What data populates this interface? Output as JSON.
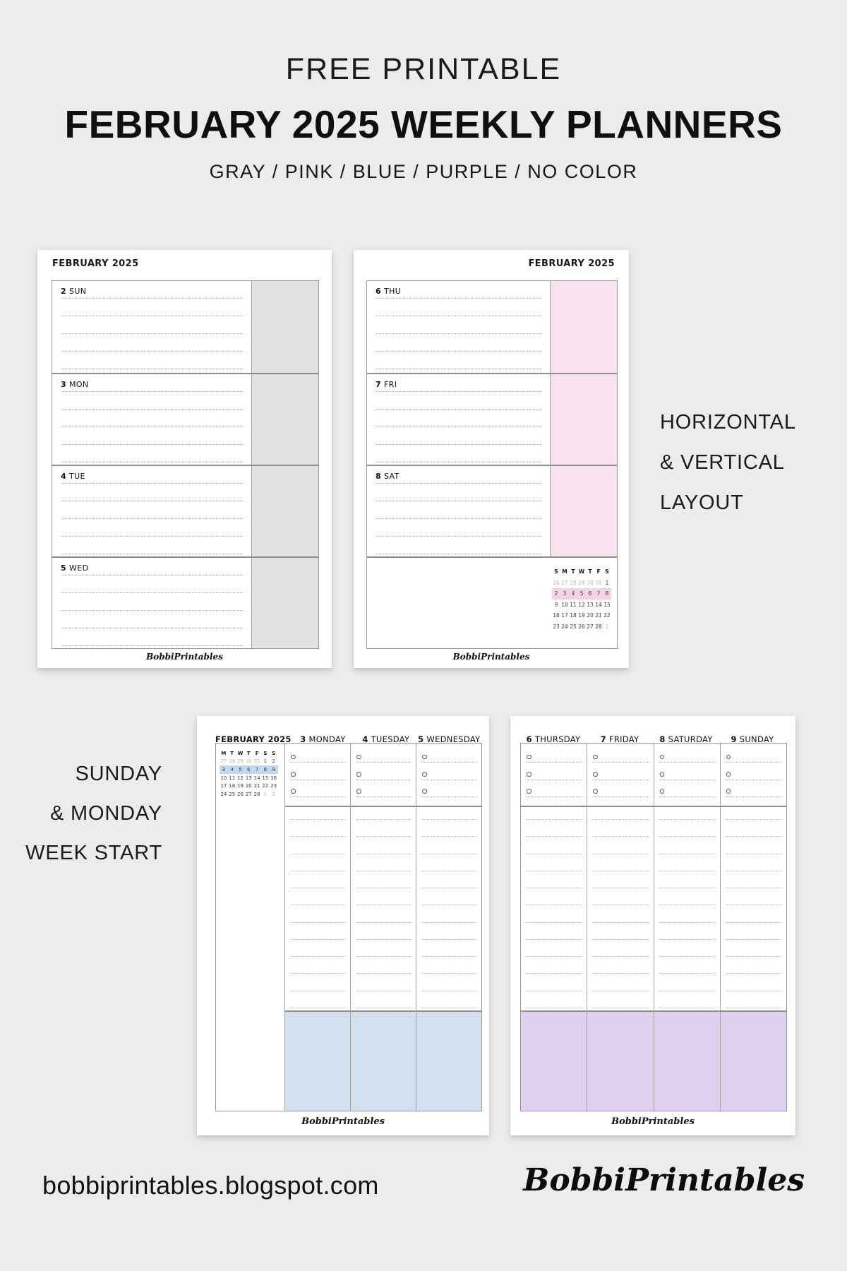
{
  "header": {
    "eyebrow": "FREE PRINTABLE",
    "title": "FEBRUARY 2025 WEEKLY PLANNERS",
    "subtitle": "GRAY / PINK / BLUE / PURPLE / NO COLOR"
  },
  "side_labels": {
    "right": [
      "HORIZONTAL",
      "& VERTICAL",
      "LAYOUT"
    ],
    "left": [
      "SUNDAY",
      "& MONDAY",
      "WEEK START"
    ]
  },
  "footer": {
    "site": "bobbiprintables.blogspot.com",
    "brand": "BobbiPrintables"
  },
  "colors": {
    "gray_box": "#E2E2E2",
    "pink_box": "#F9E2F0",
    "pink_highlight": "#F5D2E6",
    "blue_box": "#D2E0EF",
    "blue_highlight": "#C4D7ED",
    "purple_box": "#DED0EE"
  },
  "planners": {
    "horizontal_gray": {
      "layout": "horizontal",
      "month_label": "FEBRUARY 2025",
      "brand": "BobbiPrintables",
      "box_color": "gray_box",
      "ruled_lines": 5,
      "days": [
        {
          "num": "2",
          "name": "SUN"
        },
        {
          "num": "3",
          "name": "MON"
        },
        {
          "num": "4",
          "name": "TUE"
        },
        {
          "num": "5",
          "name": "WED"
        }
      ]
    },
    "horizontal_pink": {
      "layout": "horizontal",
      "month_label": "FEBRUARY 2025",
      "brand": "BobbiPrintables",
      "box_color": "pink_box",
      "ruled_lines": 5,
      "days": [
        {
          "num": "6",
          "name": "THU"
        },
        {
          "num": "7",
          "name": "FRI"
        },
        {
          "num": "8",
          "name": "SAT"
        }
      ],
      "mini_calendar": {
        "header": [
          "S",
          "M",
          "T",
          "W",
          "T",
          "F",
          "S"
        ],
        "highlight_row": 1,
        "highlight_color": "pink_highlight",
        "rows": [
          [
            {
              "d": "26",
              "muted": true
            },
            {
              "d": "27",
              "muted": true
            },
            {
              "d": "28",
              "muted": true
            },
            {
              "d": "29",
              "muted": true
            },
            {
              "d": "30",
              "muted": true
            },
            {
              "d": "31",
              "muted": true
            },
            {
              "d": "1"
            }
          ],
          [
            {
              "d": "2"
            },
            {
              "d": "3"
            },
            {
              "d": "4"
            },
            {
              "d": "5"
            },
            {
              "d": "6"
            },
            {
              "d": "7"
            },
            {
              "d": "8"
            }
          ],
          [
            {
              "d": "9"
            },
            {
              "d": "10"
            },
            {
              "d": "11"
            },
            {
              "d": "12"
            },
            {
              "d": "13"
            },
            {
              "d": "14"
            },
            {
              "d": "15"
            }
          ],
          [
            {
              "d": "16"
            },
            {
              "d": "17"
            },
            {
              "d": "18"
            },
            {
              "d": "19"
            },
            {
              "d": "20"
            },
            {
              "d": "21"
            },
            {
              "d": "22"
            }
          ],
          [
            {
              "d": "23"
            },
            {
              "d": "24"
            },
            {
              "d": "25"
            },
            {
              "d": "26"
            },
            {
              "d": "27"
            },
            {
              "d": "28"
            },
            {
              "d": "1",
              "muted": true
            }
          ]
        ]
      }
    },
    "vertical_blue": {
      "layout": "vertical",
      "month_label": "FEBRUARY 2025",
      "brand": "BobbiPrintables",
      "box_color": "blue_box",
      "bullet_rows": 3,
      "note_lines": 12,
      "columns": [
        {
          "num": "3",
          "name": "MONDAY"
        },
        {
          "num": "4",
          "name": "TUESDAY"
        },
        {
          "num": "5",
          "name": "WEDNESDAY"
        }
      ],
      "mini_calendar": {
        "header": [
          "M",
          "T",
          "W",
          "T",
          "F",
          "S",
          "S"
        ],
        "highlight_row": 1,
        "highlight_color": "blue_highlight",
        "rows": [
          [
            {
              "d": "27",
              "muted": true
            },
            {
              "d": "28",
              "muted": true
            },
            {
              "d": "29",
              "muted": true
            },
            {
              "d": "30",
              "muted": true
            },
            {
              "d": "31",
              "muted": true
            },
            {
              "d": "1"
            },
            {
              "d": "2"
            }
          ],
          [
            {
              "d": "3"
            },
            {
              "d": "4"
            },
            {
              "d": "5"
            },
            {
              "d": "6"
            },
            {
              "d": "7"
            },
            {
              "d": "8"
            },
            {
              "d": "9"
            }
          ],
          [
            {
              "d": "10"
            },
            {
              "d": "11"
            },
            {
              "d": "12"
            },
            {
              "d": "13"
            },
            {
              "d": "14"
            },
            {
              "d": "15"
            },
            {
              "d": "16"
            }
          ],
          [
            {
              "d": "17"
            },
            {
              "d": "18"
            },
            {
              "d": "19"
            },
            {
              "d": "20"
            },
            {
              "d": "21"
            },
            {
              "d": "22"
            },
            {
              "d": "23"
            }
          ],
          [
            {
              "d": "24"
            },
            {
              "d": "25"
            },
            {
              "d": "26"
            },
            {
              "d": "27"
            },
            {
              "d": "28"
            },
            {
              "d": "1",
              "muted": true
            },
            {
              "d": "2",
              "muted": true
            }
          ]
        ]
      }
    },
    "vertical_purple": {
      "layout": "vertical",
      "brand": "BobbiPrintables",
      "box_color": "purple_box",
      "bullet_rows": 3,
      "note_lines": 12,
      "columns": [
        {
          "num": "6",
          "name": "THURSDAY"
        },
        {
          "num": "7",
          "name": "FRIDAY"
        },
        {
          "num": "8",
          "name": "SATURDAY"
        },
        {
          "num": "9",
          "name": "SUNDAY"
        }
      ]
    }
  }
}
